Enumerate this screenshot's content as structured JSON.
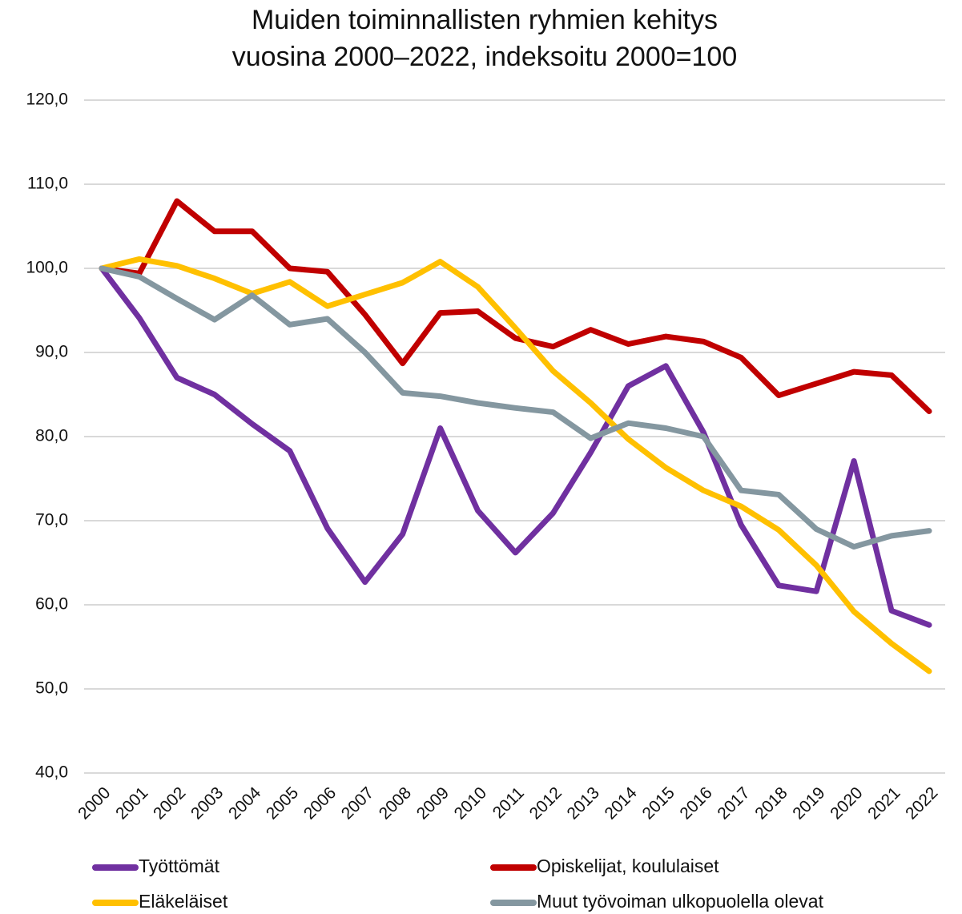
{
  "chart_data": {
    "type": "line",
    "title": [
      "Muiden toiminnallisten ryhmien kehitys",
      "vuosina 2000–2022, indeksoitu 2000=100"
    ],
    "categories": [
      "2000",
      "2001",
      "2002",
      "2003",
      "2004",
      "2005",
      "2006",
      "2007",
      "2008",
      "2009",
      "2010",
      "2011",
      "2012",
      "2013",
      "2014",
      "2015",
      "2016",
      "2017",
      "2018",
      "2019",
      "2020",
      "2021",
      "2022"
    ],
    "series": [
      {
        "name": "Työttömät",
        "color": "#7030a0",
        "values": [
          100,
          94.1,
          87.0,
          85.0,
          81.5,
          78.3,
          69.1,
          62.7,
          68.4,
          81.0,
          71.2,
          66.2,
          70.9,
          78.1,
          86.0,
          88.4,
          80.5,
          69.5,
          62.3,
          61.6,
          77.1,
          59.3,
          57.6
        ]
      },
      {
        "name": "Opiskelijat, koululaiset",
        "color": "#c00000",
        "values": [
          100,
          99.4,
          108.0,
          104.4,
          104.4,
          100.0,
          99.6,
          94.5,
          88.7,
          94.7,
          94.9,
          91.7,
          90.7,
          92.7,
          91.0,
          91.9,
          91.3,
          89.4,
          84.9,
          86.3,
          87.7,
          87.3,
          83.0
        ]
      },
      {
        "name": "Eläkeläiset",
        "color": "#ffc000",
        "values": [
          100,
          101.1,
          100.3,
          98.8,
          97.0,
          98.4,
          95.5,
          96.9,
          98.3,
          100.8,
          97.8,
          92.9,
          87.8,
          84.0,
          79.7,
          76.3,
          73.6,
          71.7,
          68.9,
          64.7,
          59.2,
          55.4,
          52.1
        ]
      },
      {
        "name": "Muut työvoiman ulkopuolella olevat",
        "color": "#8497a0",
        "values": [
          100,
          99.0,
          96.4,
          93.9,
          96.8,
          93.3,
          94.0,
          90.0,
          85.2,
          84.8,
          84.0,
          83.4,
          82.9,
          79.8,
          81.6,
          81.0,
          80.0,
          73.6,
          73.1,
          69.0,
          66.9,
          68.2,
          68.8
        ]
      }
    ],
    "ylim": [
      40,
      120
    ],
    "yticks": [
      {
        "value": 40,
        "label": "40,0"
      },
      {
        "value": 50,
        "label": "50,0"
      },
      {
        "value": 60,
        "label": "60,0"
      },
      {
        "value": 70,
        "label": "70,0"
      },
      {
        "value": 80,
        "label": "80,0"
      },
      {
        "value": 90,
        "label": "90,0"
      },
      {
        "value": 100,
        "label": "100,0"
      },
      {
        "value": 110,
        "label": "110,0"
      },
      {
        "value": 120,
        "label": "120,0"
      }
    ],
    "grid": true
  }
}
